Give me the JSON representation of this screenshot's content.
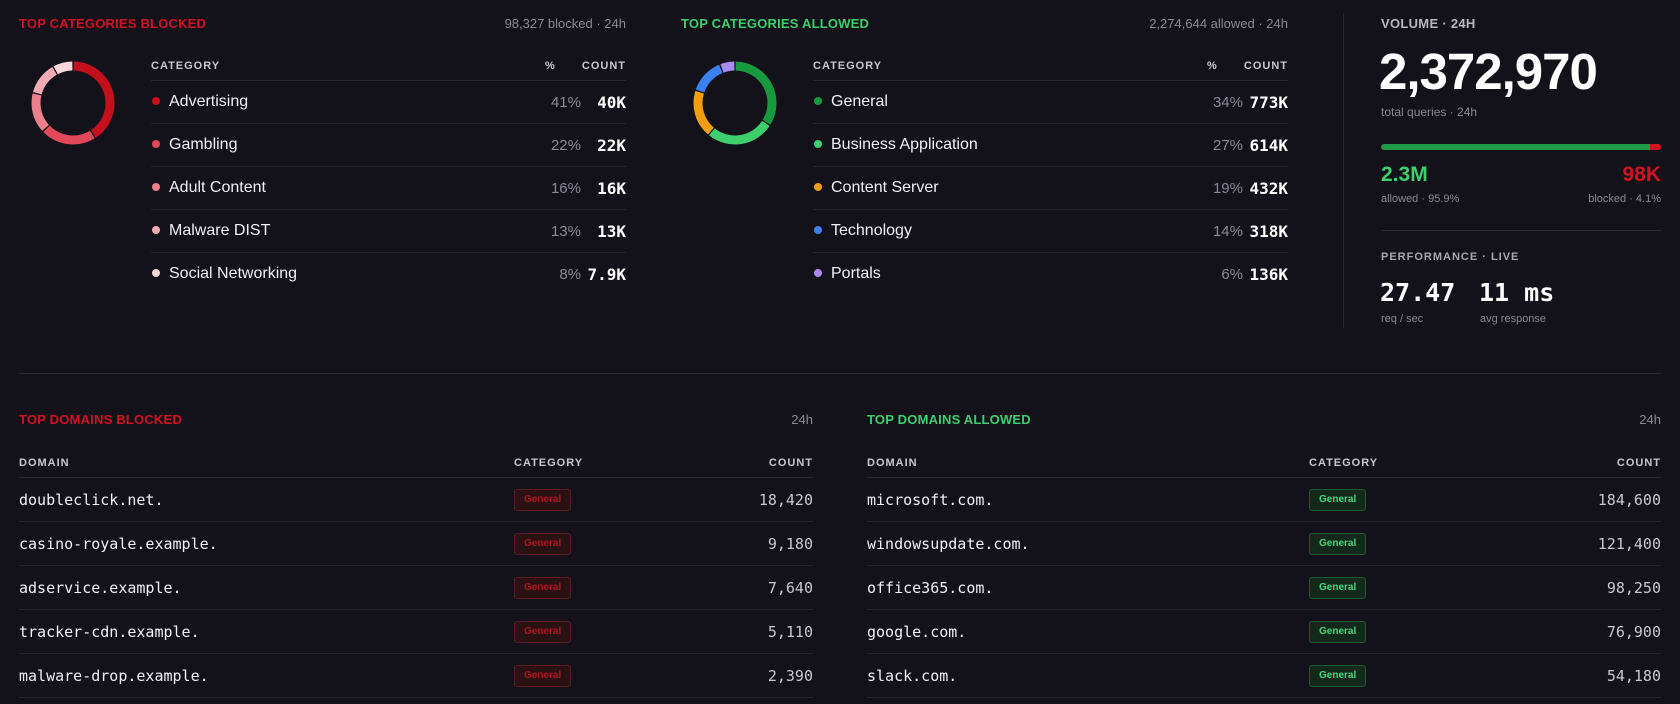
{
  "blocked_categories": {
    "title": "TOP CATEGORIES BLOCKED",
    "meta": "98,327 blocked · 24h",
    "headers": {
      "category": "CATEGORY",
      "pct": "%",
      "count": "COUNT"
    },
    "rows": [
      {
        "name": "Advertising",
        "pct": "41%",
        "count": "40K",
        "color": "#c4101c",
        "share": 41
      },
      {
        "name": "Gambling",
        "pct": "22%",
        "count": "22K",
        "color": "#e1485a",
        "share": 22
      },
      {
        "name": "Adult Content",
        "pct": "16%",
        "count": "16K",
        "color": "#ec7f8c",
        "share": 16
      },
      {
        "name": "Malware DIST",
        "pct": "13%",
        "count": "13K",
        "color": "#f2aab3",
        "share": 13
      },
      {
        "name": "Social Networking",
        "pct": "8%",
        "count": "7.9K",
        "color": "#f8d6da",
        "share": 8
      }
    ]
  },
  "allowed_categories": {
    "title": "TOP CATEGORIES ALLOWED",
    "meta": "2,274,644 allowed · 24h",
    "headers": {
      "category": "CATEGORY",
      "pct": "%",
      "count": "COUNT"
    },
    "rows": [
      {
        "name": "General",
        "pct": "34%",
        "count": "773K",
        "color": "#179a3e",
        "share": 34
      },
      {
        "name": "Business Application",
        "pct": "27%",
        "count": "614K",
        "color": "#3ccf6b",
        "share": 27
      },
      {
        "name": "Content Server",
        "pct": "19%",
        "count": "432K",
        "color": "#f29d12",
        "share": 19
      },
      {
        "name": "Technology",
        "pct": "14%",
        "count": "318K",
        "color": "#3b82f0",
        "share": 14
      },
      {
        "name": "Portals",
        "pct": "6%",
        "count": "136K",
        "color": "#a98af5",
        "share": 6
      }
    ]
  },
  "volume": {
    "label": "VOLUME · 24H",
    "total": "2,372,970",
    "total_sub": "total queries · 24h",
    "allowed_fraction": 0.959,
    "allowed": "2.3M",
    "blocked": "98K",
    "allowed_sub": "allowed · 95.9%",
    "blocked_sub": "blocked · 4.1%"
  },
  "performance": {
    "label": "PERFORMANCE · LIVE",
    "req_value": "27.47",
    "req_label": "req / sec",
    "resp_value": "11 ms",
    "resp_label": "avg response"
  },
  "blocked_domains": {
    "title": "TOP DOMAINS BLOCKED",
    "meta": "24h",
    "headers": {
      "domain": "DOMAIN",
      "category": "CATEGORY",
      "count": "COUNT"
    },
    "rows": [
      {
        "domain": "doubleclick.net.",
        "category": "General",
        "count": "18,420"
      },
      {
        "domain": "casino-royale.example.",
        "category": "General",
        "count": "9,180"
      },
      {
        "domain": "adservice.example.",
        "category": "General",
        "count": "7,640"
      },
      {
        "domain": "tracker-cdn.example.",
        "category": "General",
        "count": "5,110"
      },
      {
        "domain": "malware-drop.example.",
        "category": "General",
        "count": "2,390"
      }
    ]
  },
  "allowed_domains": {
    "title": "TOP DOMAINS ALLOWED",
    "meta": "24h",
    "headers": {
      "domain": "DOMAIN",
      "category": "CATEGORY",
      "count": "COUNT"
    },
    "rows": [
      {
        "domain": "microsoft.com.",
        "category": "General",
        "count": "184,600"
      },
      {
        "domain": "windowsupdate.com.",
        "category": "General",
        "count": "121,400"
      },
      {
        "domain": "office365.com.",
        "category": "General",
        "count": "98,250"
      },
      {
        "domain": "google.com.",
        "category": "General",
        "count": "76,900"
      },
      {
        "domain": "slack.com.",
        "category": "General",
        "count": "54,180"
      }
    ]
  },
  "colors": {
    "blocked_accent": "#d2131f",
    "allowed_accent": "#3ccf6b",
    "background": "#13111a"
  }
}
